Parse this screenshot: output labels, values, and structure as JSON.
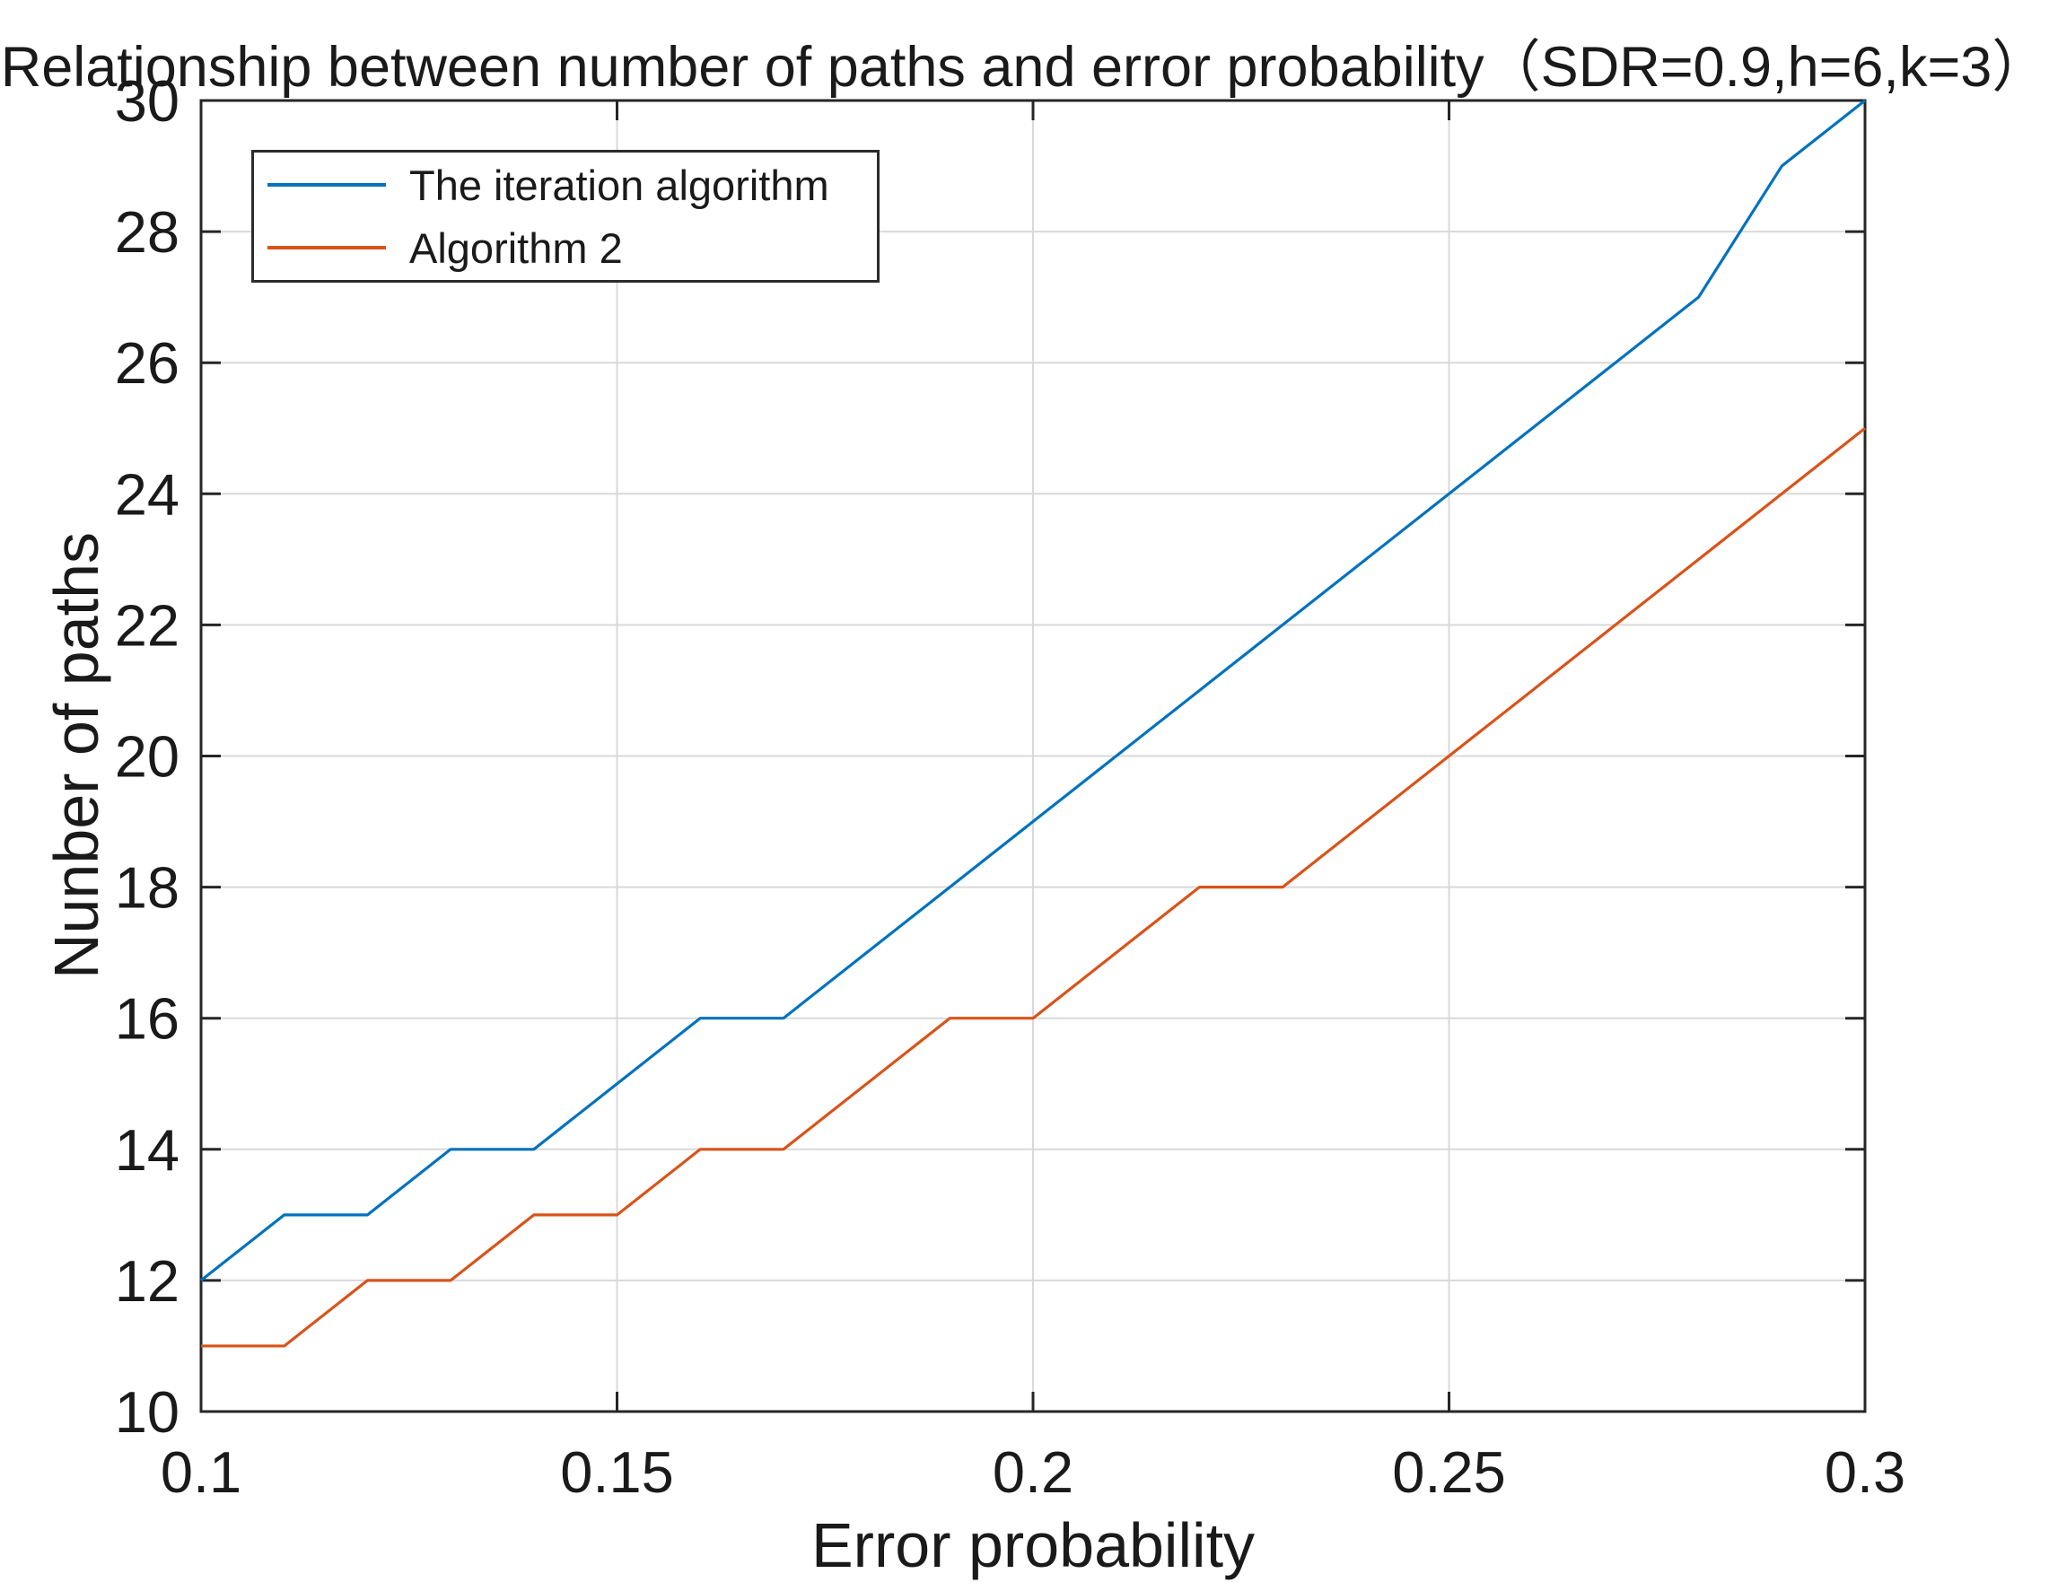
{
  "chart_data": {
    "type": "line",
    "title": "Relationship between number of paths and error probability（SDR=0.9,h=6,k=3）",
    "xlabel": "Error probability",
    "ylabel": "Nunber of paths",
    "xlim": [
      0.1,
      0.3
    ],
    "ylim": [
      10,
      30
    ],
    "grid": true,
    "legend_position": "top-left",
    "axis_color": "#262626",
    "grid_color": "#d9d9d9",
    "x": [
      0.1,
      0.11,
      0.12,
      0.13,
      0.14,
      0.15,
      0.16,
      0.17,
      0.18,
      0.19,
      0.2,
      0.21,
      0.22,
      0.23,
      0.24,
      0.25,
      0.26,
      0.27,
      0.28,
      0.29,
      0.3
    ],
    "x_ticks": {
      "values": [
        0.1,
        0.15,
        0.2,
        0.25,
        0.3
      ],
      "labels": [
        "0.1",
        "0.15",
        "0.2",
        "0.25",
        "0.3"
      ]
    },
    "y_ticks": {
      "values": [
        10,
        12,
        14,
        16,
        18,
        20,
        22,
        24,
        26,
        28,
        30
      ],
      "labels": [
        "10",
        "12",
        "14",
        "16",
        "18",
        "20",
        "22",
        "24",
        "26",
        "28",
        "30"
      ]
    },
    "series": [
      {
        "name": "The iteration algorithm",
        "color": "#0072BD",
        "values": [
          12,
          13,
          13,
          14,
          14,
          15,
          16,
          16,
          17,
          18,
          19,
          20,
          21,
          22,
          23,
          24,
          25,
          26,
          27,
          29,
          30
        ]
      },
      {
        "name": "Algorithm 2",
        "color": "#D95319",
        "values": [
          11,
          11,
          12,
          12,
          13,
          13,
          14,
          14,
          15,
          16,
          16,
          17,
          18,
          18,
          19,
          20,
          21,
          22,
          23,
          24,
          25
        ]
      }
    ]
  }
}
